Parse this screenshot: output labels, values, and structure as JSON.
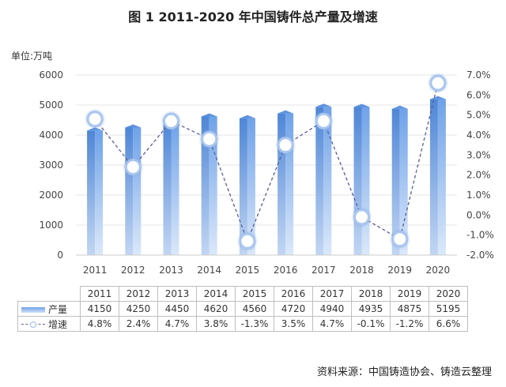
{
  "title": "图 1    2011-2020 年中国铸件总产量及增速",
  "unit_label": "单位:万吨",
  "source": "资料来源：中国铸造协会、铸造云整理",
  "colors": {
    "bar": "#7aa9ec",
    "line": "#5b5b9a",
    "marker_border": "#a9c6f0"
  },
  "chart_data": {
    "type": "bar",
    "categories": [
      "2011",
      "2012",
      "2013",
      "2014",
      "2015",
      "2016",
      "2017",
      "2018",
      "2019",
      "2020"
    ],
    "series": [
      {
        "name": "产量",
        "type": "bar",
        "axis": "left",
        "values": [
          4150,
          4250,
          4450,
          4620,
          4560,
          4720,
          4940,
          4935,
          4875,
          5195
        ],
        "labels": [
          "4150",
          "4250",
          "4450",
          "4620",
          "4560",
          "4720",
          "4940",
          "4935",
          "4875",
          "5195"
        ]
      },
      {
        "name": "增速",
        "type": "line",
        "axis": "right",
        "values": [
          4.8,
          2.4,
          4.7,
          3.8,
          -1.3,
          3.5,
          4.7,
          -0.1,
          -1.2,
          6.6
        ],
        "labels": [
          "4.8%",
          "2.4%",
          "4.7%",
          "3.8%",
          "-1.3%",
          "3.5%",
          "4.7%",
          "-0.1%",
          "-1.2%",
          "6.6%"
        ]
      }
    ],
    "y_left": {
      "min": 0,
      "max": 6000,
      "ticks": [
        "0",
        "1000",
        "2000",
        "3000",
        "4000",
        "5000",
        "6000"
      ]
    },
    "y_right": {
      "min": -2,
      "max": 7,
      "ticks": [
        "-2.0%",
        "-1.0%",
        "0.0%",
        "1.0%",
        "2.0%",
        "3.0%",
        "4.0%",
        "5.0%",
        "6.0%",
        "7.0%"
      ]
    },
    "grid": true,
    "legend": "table-below"
  }
}
